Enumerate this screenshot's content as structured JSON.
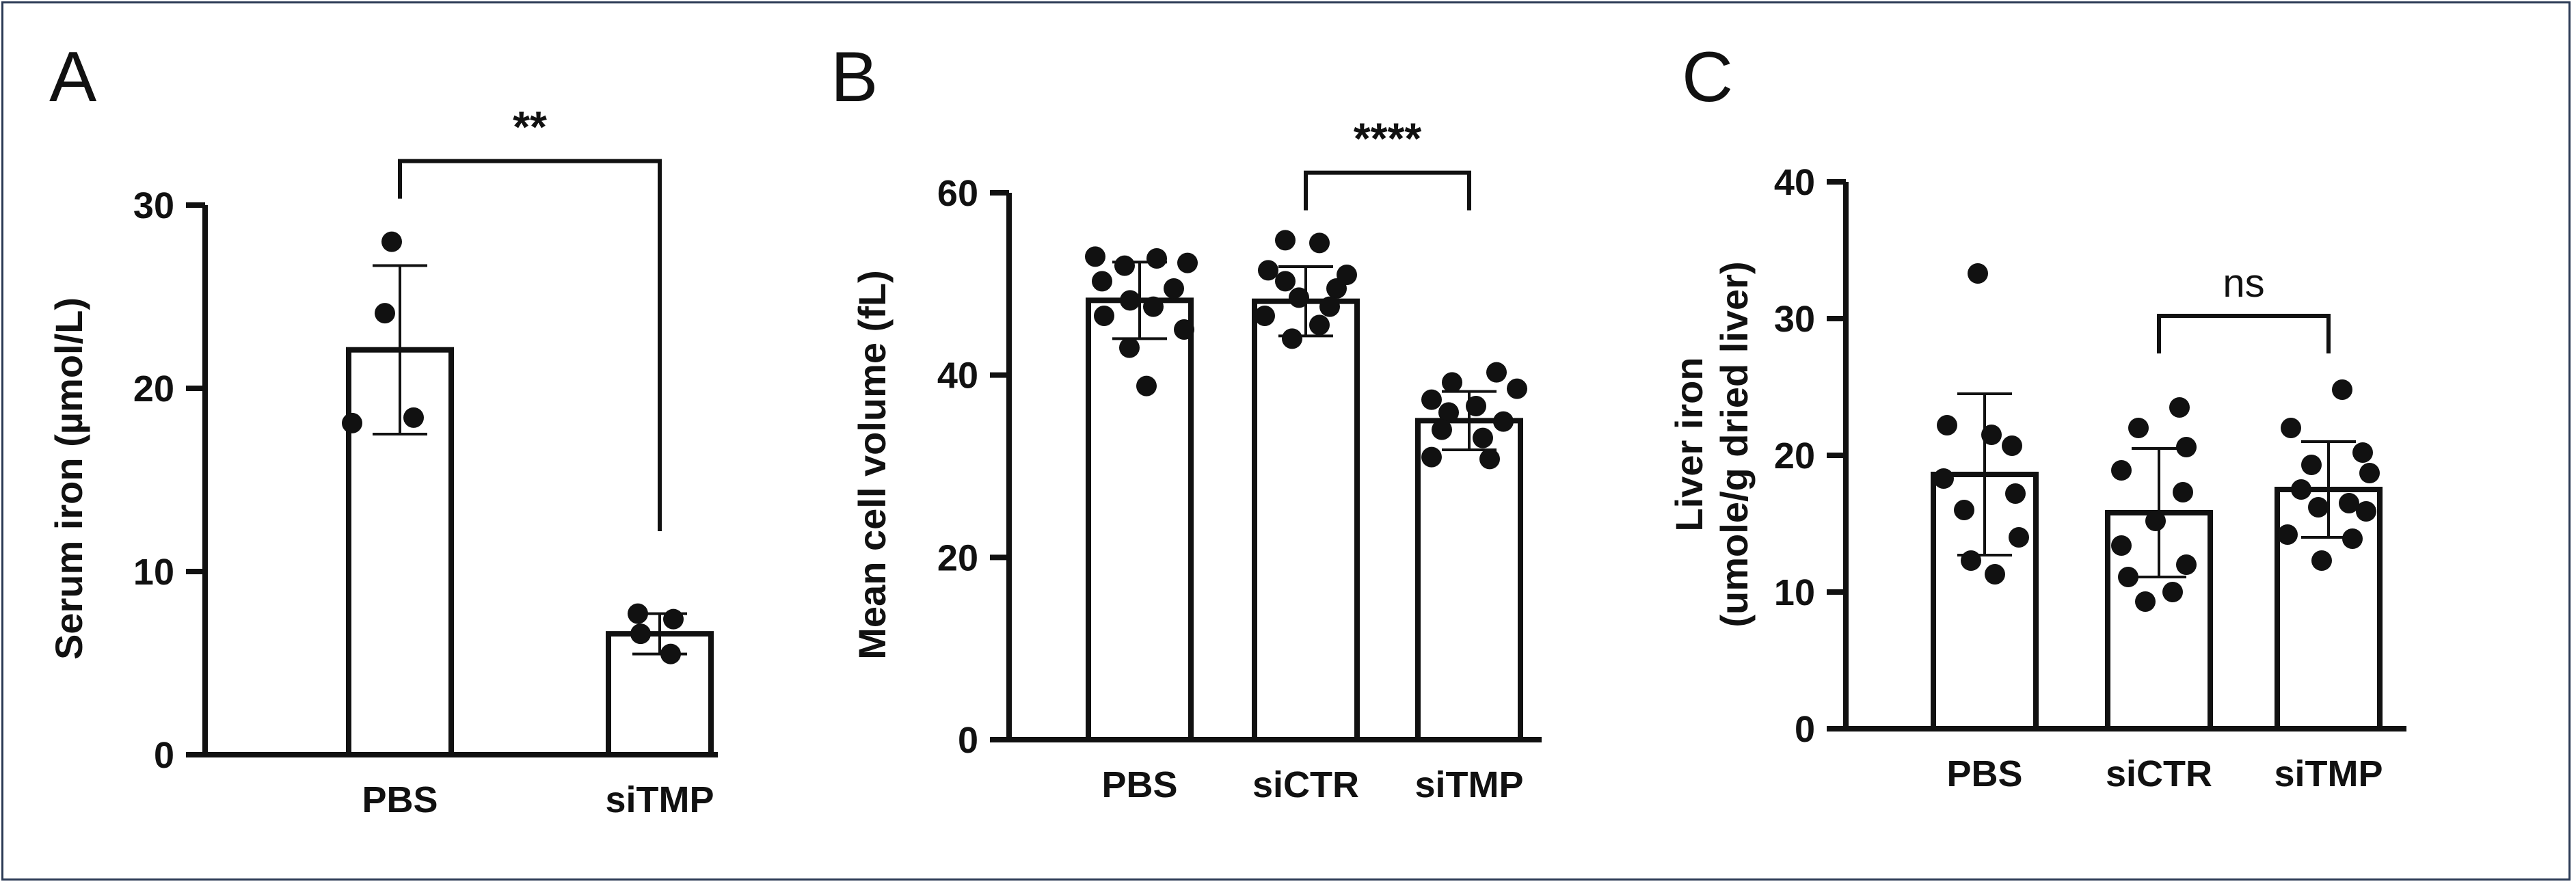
{
  "chart_data": [
    {
      "panel": "A",
      "type": "bar",
      "ylabel": "Serum iron (µmol/L)",
      "ylim": [
        0,
        30
      ],
      "yticks": [
        0,
        10,
        20,
        30
      ],
      "categories": [
        "PBS",
        "siTMP"
      ],
      "values": [
        22.1,
        6.6
      ],
      "error_sd": [
        4.6,
        1.1
      ],
      "points": [
        [
          28.0,
          24.1,
          18.1,
          18.4
        ],
        [
          7.7,
          7.4,
          6.6,
          5.5
        ]
      ],
      "comparisons": [
        {
          "from": 0,
          "to": 1,
          "label": "**",
          "bar_y": 32.4
        }
      ]
    },
    {
      "panel": "B",
      "type": "bar",
      "ylabel": "Mean cell volume (fL)",
      "ylim": [
        0,
        60
      ],
      "yticks": [
        0,
        20,
        40,
        60
      ],
      "categories": [
        "PBS",
        "siCTR",
        "siTMP"
      ],
      "values": [
        48.2,
        48.1,
        35.0
      ],
      "error_sd": [
        4.2,
        3.8,
        3.2
      ],
      "points": [
        [
          53,
          52,
          52.8,
          52.3,
          50.3,
          49.5,
          48.2,
          47.5,
          46.5,
          45,
          43,
          38.8
        ],
        [
          54.8,
          54.5,
          51.5,
          51,
          50.3,
          49.5,
          48.5,
          47.5,
          46.5,
          45.5,
          44
        ],
        [
          40.3,
          39.2,
          38.5,
          37.3,
          36.6,
          35.9,
          34.9,
          34,
          33.1,
          31,
          30.8
        ]
      ],
      "comparisons": [
        {
          "from": 1,
          "to": 2,
          "label": "****",
          "bar_y": 62.2
        }
      ]
    },
    {
      "panel": "C",
      "type": "bar",
      "ylabel": "Liver iron",
      "ylabel2": "(umole/g dried liver)",
      "ylim": [
        0,
        40
      ],
      "yticks": [
        0,
        10,
        20,
        30,
        40
      ],
      "categories": [
        "PBS",
        "siCTR",
        "siTMP"
      ],
      "values": [
        18.6,
        15.8,
        17.5
      ],
      "error_sd": [
        5.9,
        4.7,
        3.5
      ],
      "points": [
        [
          33.3,
          22.2,
          21.5,
          20.7,
          18.3,
          17.2,
          16.0,
          14.0,
          12.3,
          11.3
        ],
        [
          23.5,
          22.0,
          20.6,
          18.9,
          17.3,
          15.2,
          13.4,
          12.0,
          11.1,
          10.0,
          9.3
        ],
        [
          24.8,
          22.0,
          20.2,
          19.3,
          18.7,
          17.5,
          16.5,
          16.2,
          15.9,
          14.2,
          13.9,
          12.3
        ]
      ],
      "comparisons": [
        {
          "from": 1,
          "to": 2,
          "label": "ns",
          "bar_y": 30.2
        }
      ]
    }
  ]
}
